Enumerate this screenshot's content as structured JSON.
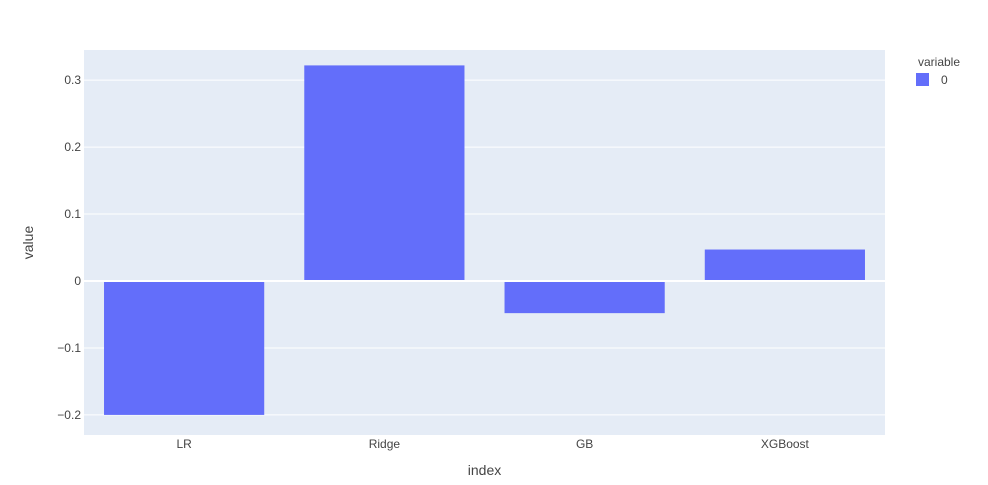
{
  "chart_data": {
    "type": "bar",
    "title": "",
    "xlabel": "index",
    "ylabel": "value",
    "categories": [
      "LR",
      "Ridge",
      "GB",
      "XGBoost"
    ],
    "series": [
      {
        "name": "0",
        "values": [
          -0.2,
          0.322,
          -0.048,
          0.047
        ],
        "color": "#636efa"
      }
    ],
    "ylim": [
      -0.23,
      0.345
    ],
    "yticks": [
      -0.2,
      -0.1,
      0,
      0.1,
      0.2,
      0.3
    ],
    "ytick_labels": [
      "−0.2",
      "−0.1",
      "0",
      "0.1",
      "0.2",
      "0.3"
    ],
    "grid": true,
    "legend": {
      "title": "variable",
      "position": "top-right"
    },
    "plot_bgcolor": "#e5ecf6"
  }
}
